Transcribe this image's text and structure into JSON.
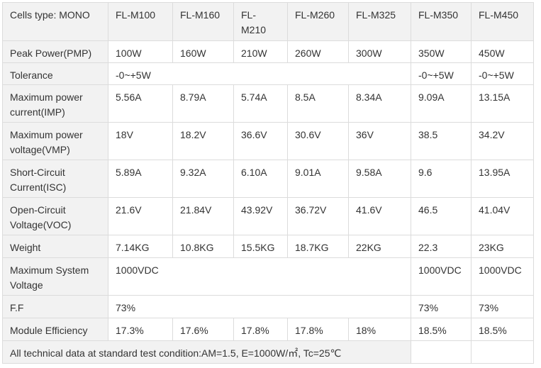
{
  "table": {
    "header": [
      "Cells type: MONO",
      "FL-M100",
      "FL-M160",
      "FL-M210",
      "FL-M260",
      "FL-M325",
      "FL-M350",
      "FL-M450"
    ],
    "rows": [
      [
        "Peak Power(PMP)",
        "100W",
        "160W",
        "210W",
        "260W",
        "300W",
        "350W",
        "450W"
      ],
      [
        "Tolerance",
        "-0~+5W",
        "-0~+5W",
        "-0~+5W"
      ],
      [
        "Maximum power current(IMP)",
        "5.56A",
        "8.79A",
        "5.74A",
        "8.5A",
        "8.34A",
        "9.09A",
        "13.15A"
      ],
      [
        "Maximum power voltage(VMP)",
        "18V",
        "18.2V",
        "36.6V",
        "30.6V",
        "36V",
        "38.5",
        "34.2V"
      ],
      [
        "Short-Circuit Current(ISC)",
        "5.89A",
        "9.32A",
        "6.10A",
        "9.01A",
        "9.58A",
        "9.6",
        "13.95A"
      ],
      [
        "Open-Circuit Voltage(VOC)",
        "21.6V",
        "21.84V",
        "43.92V",
        "36.72V",
        "41.6V",
        "46.5",
        "41.04V"
      ],
      [
        "Weight",
        "7.14KG",
        "10.8KG",
        "15.5KG",
        "18.7KG",
        "22KG",
        "22.3",
        "23KG"
      ],
      [
        "Maximum System Voltage",
        "1000VDC",
        "1000VDC",
        "1000VDC"
      ],
      [
        "F.F",
        "73%",
        "73%",
        "73%"
      ],
      [
        "Module Efficiency",
        "17.3%",
        "17.6%",
        "17.8%",
        "17.8%",
        "18%",
        "18.5%",
        "18.5%"
      ]
    ],
    "footer": "All technical data at standard test condition:AM=1.5, E=1000W/㎡, Tc=25℃"
  }
}
